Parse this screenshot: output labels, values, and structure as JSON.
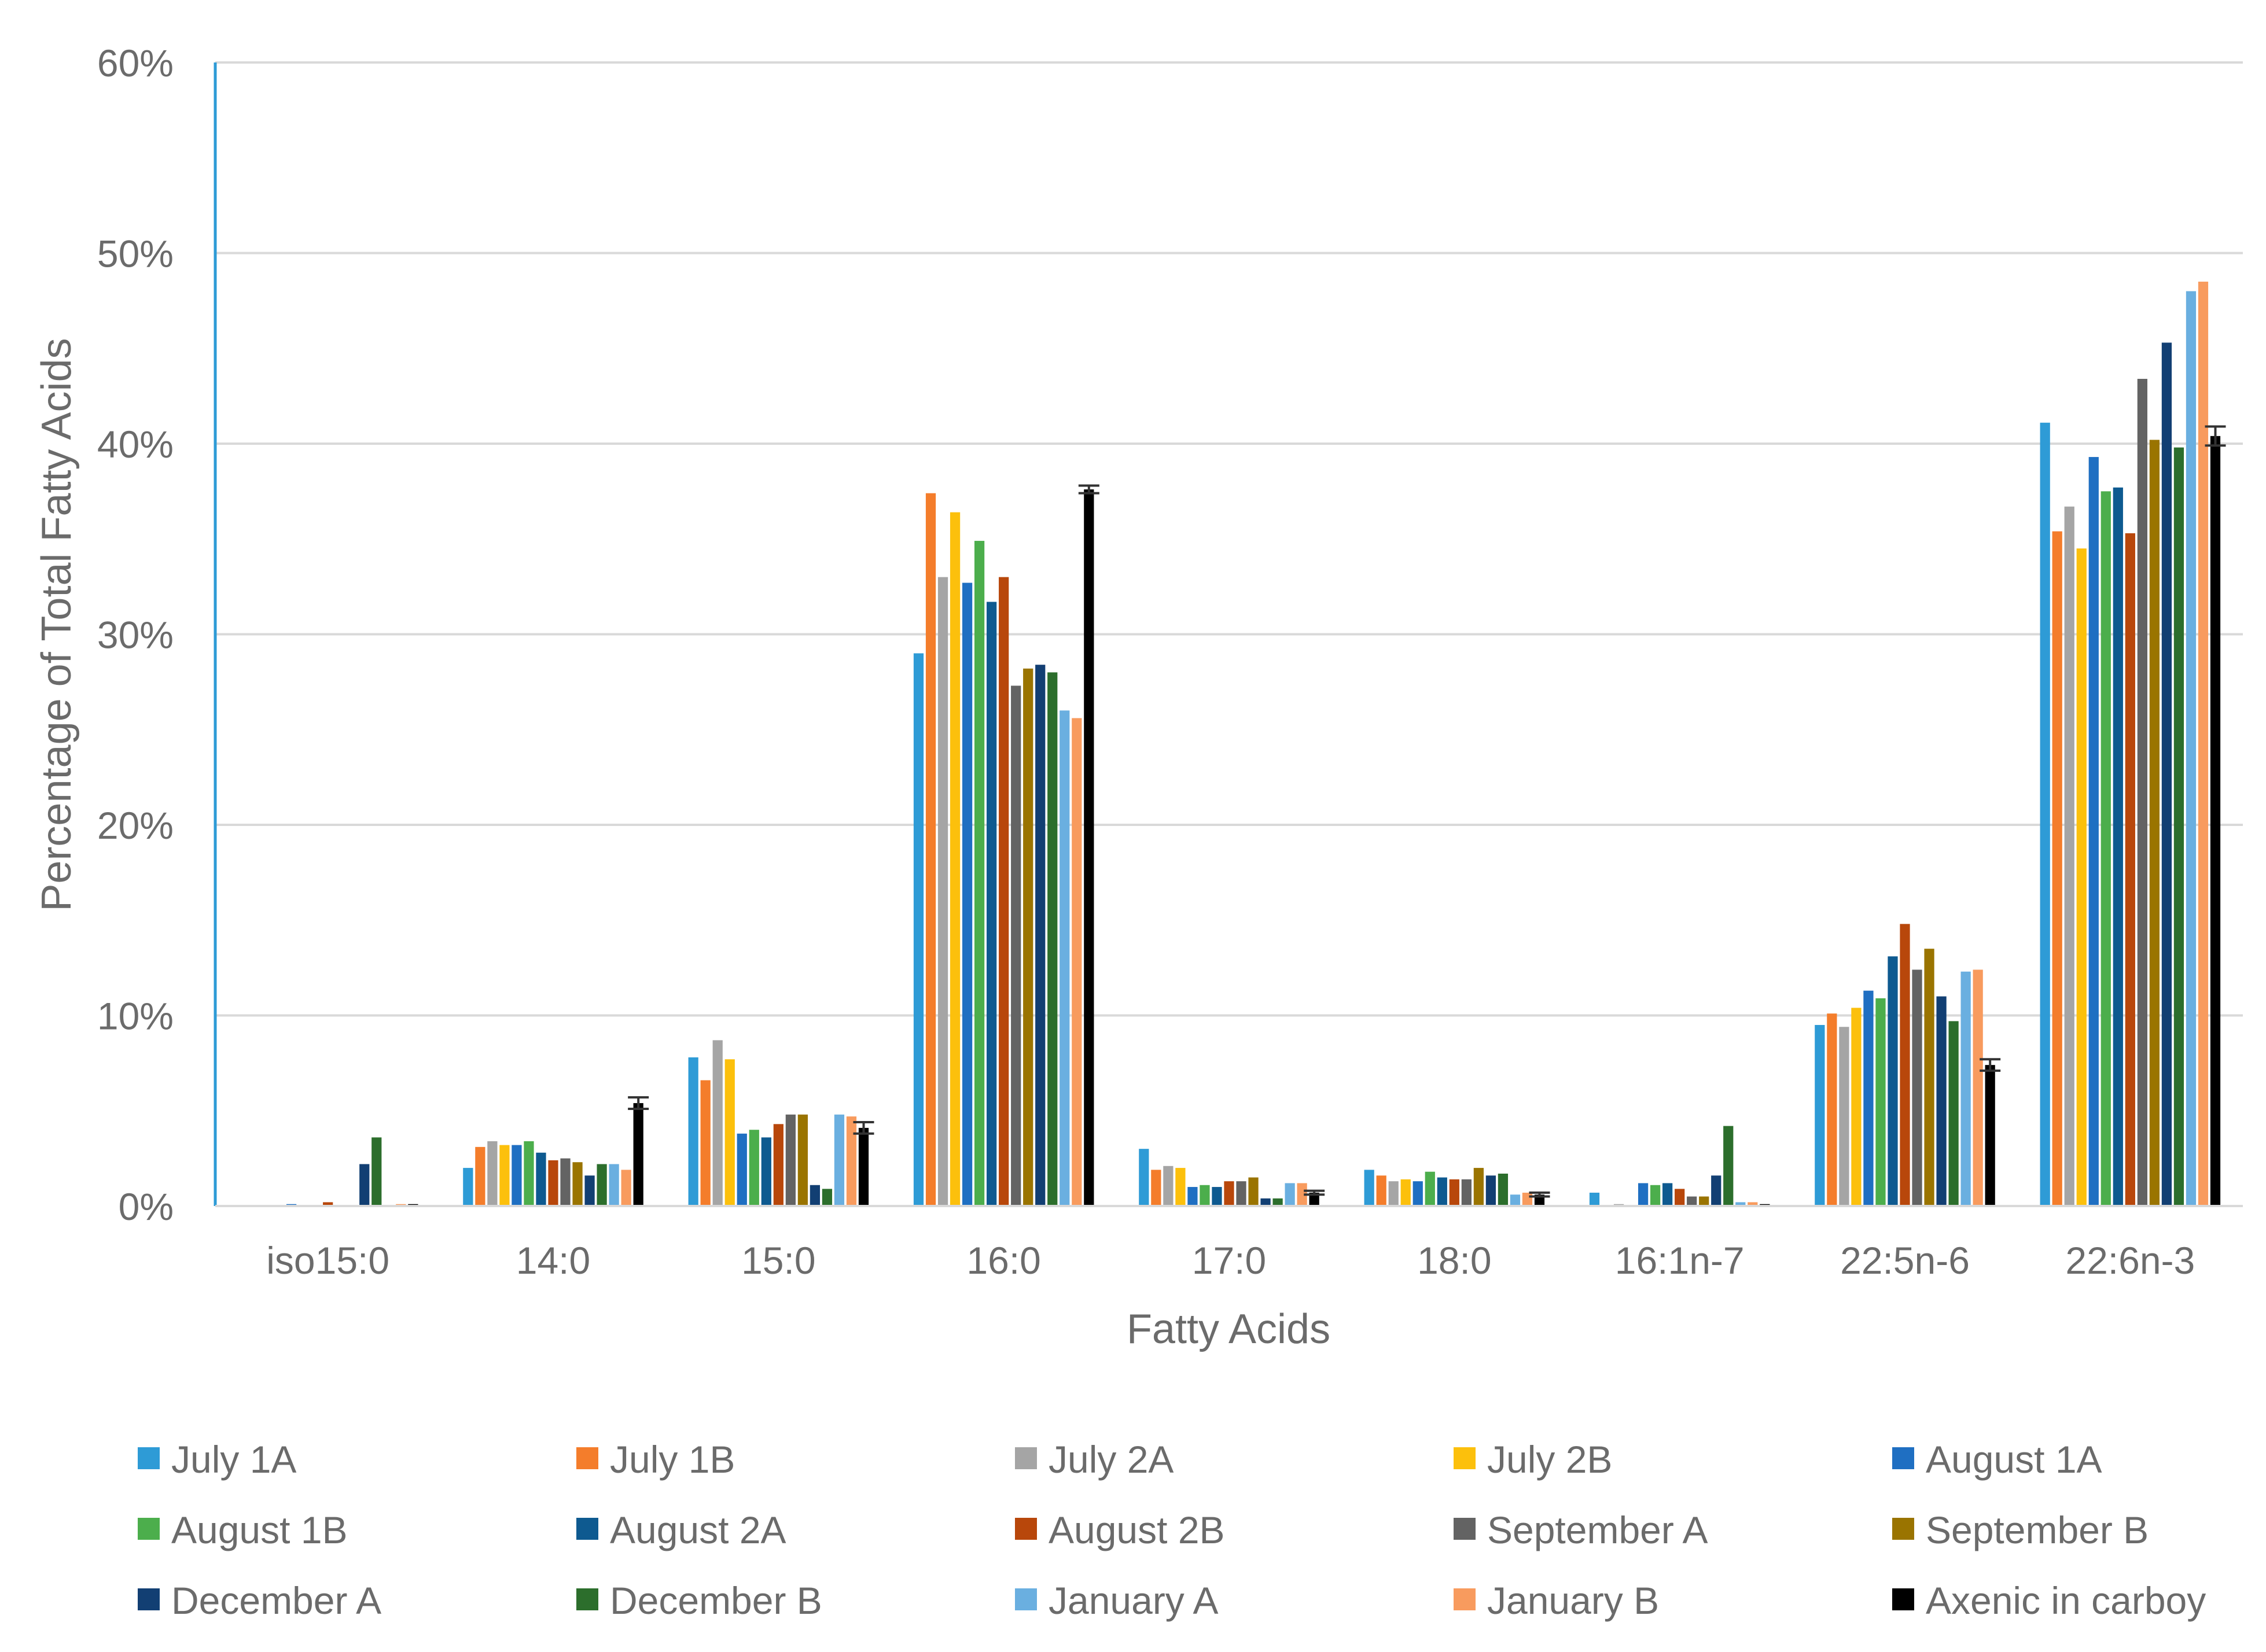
{
  "chart_data": {
    "type": "bar",
    "title": "",
    "xlabel": "Fatty Acids",
    "ylabel": "Percentage of Total Fatty Acids",
    "ylim": [
      0,
      60
    ],
    "yticks": [
      "0%",
      "10%",
      "20%",
      "30%",
      "40%",
      "50%",
      "60%"
    ],
    "ytick_values": [
      0,
      10,
      20,
      30,
      40,
      50,
      60
    ],
    "grid": true,
    "legend_position": "bottom",
    "categories": [
      "iso15:0",
      "14:0",
      "15:0",
      "16:0",
      "17:0",
      "18:0",
      "16:1n-7",
      "22:5n-6",
      "22:6n-3"
    ],
    "series": [
      {
        "name": "July 1A",
        "color": "#2e9bd6",
        "values": [
          0.0,
          2.0,
          7.8,
          29.0,
          3.0,
          1.9,
          0.7,
          9.5,
          41.1
        ]
      },
      {
        "name": "July 1B",
        "color": "#f47d2b",
        "values": [
          0.0,
          3.1,
          6.6,
          37.4,
          1.9,
          1.6,
          0.0,
          10.1,
          35.4
        ]
      },
      {
        "name": "July 2A",
        "color": "#a5a5a5",
        "values": [
          0.0,
          3.4,
          8.7,
          33.0,
          2.1,
          1.3,
          0.1,
          9.4,
          36.7
        ]
      },
      {
        "name": "July 2B",
        "color": "#fcc00c",
        "values": [
          0.0,
          3.2,
          7.7,
          36.4,
          2.0,
          1.4,
          0.0,
          10.4,
          34.5
        ]
      },
      {
        "name": "August 1A",
        "color": "#1f6fc2",
        "values": [
          0.1,
          3.2,
          3.8,
          32.7,
          1.0,
          1.3,
          1.2,
          11.3,
          39.3
        ]
      },
      {
        "name": "August 1B",
        "color": "#4cae4c",
        "values": [
          0.0,
          3.4,
          4.0,
          34.9,
          1.1,
          1.8,
          1.1,
          10.9,
          37.5
        ]
      },
      {
        "name": "August 2A",
        "color": "#0e5a90",
        "values": [
          0.0,
          2.8,
          3.6,
          31.7,
          1.0,
          1.5,
          1.2,
          13.1,
          37.7
        ]
      },
      {
        "name": "August 2B",
        "color": "#b8470b",
        "values": [
          0.2,
          2.4,
          4.3,
          33.0,
          1.3,
          1.4,
          0.9,
          14.8,
          35.3
        ]
      },
      {
        "name": "September A",
        "color": "#636363",
        "values": [
          0.0,
          2.5,
          4.8,
          27.3,
          1.3,
          1.4,
          0.5,
          12.4,
          43.4
        ]
      },
      {
        "name": "September B",
        "color": "#9a7400",
        "values": [
          0.0,
          2.3,
          4.8,
          28.2,
          1.5,
          2.0,
          0.5,
          13.5,
          40.2
        ]
      },
      {
        "name": "December A",
        "color": "#123f73",
        "values": [
          2.2,
          1.6,
          1.1,
          28.4,
          0.4,
          1.6,
          1.6,
          11.0,
          45.3
        ]
      },
      {
        "name": "December B",
        "color": "#2c6e2c",
        "values": [
          3.6,
          2.2,
          0.9,
          28.0,
          0.4,
          1.7,
          4.2,
          9.7,
          39.8
        ]
      },
      {
        "name": "January A",
        "color": "#6aafe0",
        "values": [
          0.0,
          2.2,
          4.8,
          26.0,
          1.2,
          0.6,
          0.2,
          12.3,
          48.0
        ]
      },
      {
        "name": "January B",
        "color": "#f89b5e",
        "values": [
          0.1,
          1.9,
          4.7,
          25.6,
          1.2,
          0.7,
          0.2,
          12.4,
          48.5
        ]
      },
      {
        "name": "Axenic in carboy",
        "color": "#000000",
        "values": [
          0.1,
          5.4,
          4.1,
          37.6,
          0.7,
          0.6,
          0.1,
          7.4,
          40.4
        ]
      }
    ],
    "error_bars": {
      "series": "Axenic in carboy",
      "values": [
        0.0,
        0.3,
        0.3,
        0.2,
        0.1,
        0.1,
        0.0,
        0.3,
        0.5
      ]
    }
  }
}
